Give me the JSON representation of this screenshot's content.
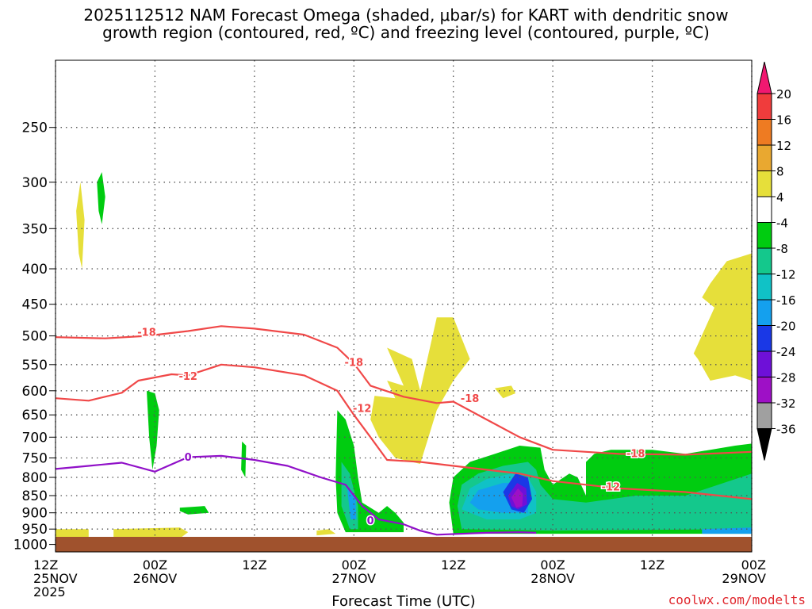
{
  "title": {
    "line1": "2025112512 NAM Forecast Omega (shaded, μbar/s) for KART with dendritic snow",
    "line2": "growth region (contoured, red, ºC) and freezing level (contoured, purple, ºC)"
  },
  "credit": "coolwx.com/modelts",
  "chart_data": {
    "type": "heatmap",
    "xlabel": "Forecast Time (UTC)",
    "ylabel": "",
    "x_ticks": [
      {
        "hour": 0,
        "lines": [
          "12Z",
          "25NOV",
          "2025"
        ]
      },
      {
        "hour": 12,
        "lines": [
          "00Z",
          "26NOV"
        ]
      },
      {
        "hour": 24,
        "lines": [
          "12Z"
        ]
      },
      {
        "hour": 36,
        "lines": [
          "00Z",
          "27NOV"
        ]
      },
      {
        "hour": 48,
        "lines": [
          "12Z"
        ]
      },
      {
        "hour": 60,
        "lines": [
          "00Z",
          "28NOV"
        ]
      },
      {
        "hour": 72,
        "lines": [
          "12Z"
        ]
      },
      {
        "hour": 84,
        "lines": [
          "00Z",
          "29NOV"
        ]
      }
    ],
    "y_ticks": [
      250,
      300,
      350,
      400,
      450,
      500,
      550,
      600,
      650,
      700,
      750,
      800,
      850,
      900,
      950,
      1000
    ],
    "ylim": [
      1025,
      200
    ],
    "xlim": [
      0,
      84
    ],
    "y_scale": "log",
    "grid": true,
    "colorbar": {
      "labels": [
        "20",
        "16",
        "12",
        "8",
        "4",
        "-4",
        "-8",
        "-12",
        "-16",
        "-20",
        "-24",
        "-28",
        "-32",
        "-36"
      ],
      "colors": [
        "#f01870",
        "#f03c3c",
        "#ee7b22",
        "#e9a830",
        "#e6df3a",
        "#ffffff",
        "#00cc10",
        "#14c88c",
        "#10c2c6",
        "#14a0ee",
        "#1a38e6",
        "#6e10d8",
        "#9e10c6",
        "#a0a0a0",
        "#000000"
      ]
    },
    "contours": [
      {
        "label": "-18",
        "color": "#f04848",
        "points": [
          [
            0,
            502
          ],
          [
            6,
            504
          ],
          [
            11,
            500
          ],
          [
            16,
            492
          ],
          [
            20,
            484
          ],
          [
            24,
            488
          ],
          [
            30,
            498
          ],
          [
            34,
            520
          ],
          [
            36,
            548
          ],
          [
            38,
            590
          ],
          [
            42,
            612
          ],
          [
            46,
            625
          ],
          [
            48,
            622
          ],
          [
            52,
            660
          ],
          [
            56,
            700
          ],
          [
            60,
            730
          ],
          [
            68,
            740
          ],
          [
            76,
            742
          ],
          [
            84,
            735
          ]
        ]
      },
      {
        "label": "-12",
        "color": "#f04848",
        "points": [
          [
            0,
            615
          ],
          [
            4,
            620
          ],
          [
            8,
            604
          ],
          [
            10,
            580
          ],
          [
            14,
            568
          ],
          [
            16,
            570
          ],
          [
            20,
            550
          ],
          [
            24,
            555
          ],
          [
            30,
            570
          ],
          [
            34,
            600
          ],
          [
            36,
            650
          ],
          [
            38,
            700
          ],
          [
            40,
            755
          ],
          [
            44,
            760
          ],
          [
            48,
            770
          ],
          [
            52,
            780
          ],
          [
            56,
            790
          ],
          [
            60,
            810
          ],
          [
            68,
            830
          ],
          [
            76,
            840
          ],
          [
            84,
            860
          ]
        ]
      },
      {
        "label": "0",
        "color": "#9010c8",
        "points": [
          [
            0,
            778
          ],
          [
            4,
            770
          ],
          [
            8,
            762
          ],
          [
            12,
            785
          ],
          [
            16,
            748
          ],
          [
            20,
            745
          ],
          [
            24,
            755
          ],
          [
            28,
            770
          ],
          [
            32,
            800
          ],
          [
            35,
            820
          ],
          [
            37,
            880
          ],
          [
            39,
            920
          ],
          [
            42,
            935
          ],
          [
            44,
            955
          ],
          [
            46,
            968
          ],
          [
            52,
            962
          ],
          [
            56,
            960
          ],
          [
            58,
            962
          ]
        ]
      }
    ],
    "contour_labels": [
      {
        "text": "-18",
        "x": 11,
        "p": 493
      },
      {
        "text": "-18",
        "x": 36,
        "p": 545
      },
      {
        "text": "-18",
        "x": 50,
        "p": 615
      },
      {
        "text": "-18",
        "x": 70,
        "p": 738
      },
      {
        "text": "-12",
        "x": 16,
        "p": 571
      },
      {
        "text": "-12",
        "x": 37,
        "p": 635
      },
      {
        "text": "-12",
        "x": 67,
        "p": 825
      },
      {
        "text": "0",
        "x": 16,
        "p": 747
      },
      {
        "text": "0",
        "x": 38,
        "p": 923
      }
    ],
    "omega_regions": [
      {
        "value": 4,
        "points": [
          [
            2.5,
            330
          ],
          [
            3,
            300
          ],
          [
            3.5,
            340
          ],
          [
            3.2,
            400
          ],
          [
            2.8,
            380
          ]
        ]
      },
      {
        "value": -4,
        "points": [
          [
            5,
            300
          ],
          [
            5.6,
            290
          ],
          [
            6,
            315
          ],
          [
            5.6,
            345
          ],
          [
            5.2,
            330
          ]
        ]
      },
      {
        "value": -4,
        "points": [
          [
            11,
            600
          ],
          [
            12,
            605
          ],
          [
            12.5,
            640
          ],
          [
            12.2,
            720
          ],
          [
            11.7,
            780
          ],
          [
            11.3,
            700
          ]
        ]
      },
      {
        "value": -4,
        "points": [
          [
            22.5,
            710
          ],
          [
            23,
            720
          ],
          [
            22.9,
            800
          ],
          [
            22.4,
            780
          ]
        ]
      },
      {
        "value": -4,
        "points": [
          [
            15,
            885
          ],
          [
            18,
            880
          ],
          [
            18.5,
            900
          ],
          [
            16,
            905
          ],
          [
            15,
            895
          ]
        ]
      },
      {
        "value": 4,
        "points": [
          [
            0,
            950
          ],
          [
            4,
            950
          ],
          [
            4,
            975
          ],
          [
            0,
            975
          ]
        ]
      },
      {
        "value": 4,
        "points": [
          [
            7,
            950
          ],
          [
            15,
            945
          ],
          [
            16,
            960
          ],
          [
            15,
            980
          ],
          [
            7,
            980
          ]
        ]
      },
      {
        "value": 4,
        "points": [
          [
            31.5,
            955
          ],
          [
            33,
            950
          ],
          [
            33.8,
            965
          ],
          [
            31.5,
            970
          ]
        ]
      },
      {
        "value": 4,
        "points": [
          [
            38.5,
            610
          ],
          [
            41,
            615
          ],
          [
            40,
            580
          ],
          [
            42,
            590
          ],
          [
            40,
            520
          ],
          [
            43,
            540
          ],
          [
            44,
            600
          ],
          [
            46,
            470
          ],
          [
            48,
            470
          ],
          [
            50,
            540
          ],
          [
            48,
            580
          ],
          [
            46,
            640
          ],
          [
            45,
            700
          ],
          [
            44,
            765
          ],
          [
            41,
            750
          ],
          [
            39,
            700
          ],
          [
            38,
            660
          ]
        ]
      },
      {
        "value": 4,
        "points": [
          [
            53,
            595
          ],
          [
            55,
            590
          ],
          [
            55.5,
            605
          ],
          [
            54,
            615
          ]
        ]
      },
      {
        "value": 4,
        "points": [
          [
            77,
            530
          ],
          [
            79.5,
            455
          ],
          [
            78,
            440
          ],
          [
            79,
            420
          ],
          [
            81,
            390
          ],
          [
            84,
            380
          ],
          [
            84,
            580
          ],
          [
            82,
            570
          ],
          [
            79,
            580
          ],
          [
            77.5,
            540
          ]
        ]
      },
      {
        "value": -4,
        "points": [
          [
            34,
            640
          ],
          [
            35,
            660
          ],
          [
            36,
            720
          ],
          [
            36.5,
            800
          ],
          [
            37,
            870
          ],
          [
            39,
            900
          ],
          [
            40,
            880
          ],
          [
            41,
            900
          ],
          [
            42,
            930
          ],
          [
            42,
            960
          ],
          [
            37,
            960
          ],
          [
            35,
            960
          ],
          [
            34,
            900
          ],
          [
            33.8,
            800
          ]
        ]
      },
      {
        "value": -8,
        "points": [
          [
            34.5,
            760
          ],
          [
            35.5,
            790
          ],
          [
            36.5,
            880
          ],
          [
            36.5,
            950
          ],
          [
            35.5,
            950
          ],
          [
            34.5,
            880
          ]
        ]
      },
      {
        "value": -16,
        "points": [
          [
            35.2,
            830
          ],
          [
            36.2,
            860
          ],
          [
            36.3,
            920
          ],
          [
            35.6,
            920
          ]
        ]
      },
      {
        "value": -4,
        "points": [
          [
            47.5,
            870
          ],
          [
            48,
            800
          ],
          [
            50,
            760
          ],
          [
            53,
            740
          ],
          [
            56,
            720
          ],
          [
            58.5,
            725
          ],
          [
            59,
            780
          ],
          [
            60,
            820
          ],
          [
            62,
            790
          ],
          [
            63,
            800
          ],
          [
            64,
            850
          ],
          [
            64,
            760
          ],
          [
            65,
            740
          ],
          [
            67,
            730
          ],
          [
            72,
            730
          ],
          [
            76,
            740
          ],
          [
            82,
            720
          ],
          [
            84,
            715
          ],
          [
            84,
            965
          ],
          [
            60,
            965
          ],
          [
            48,
            965
          ]
        ]
      },
      {
        "value": -8,
        "points": [
          [
            48.5,
            880
          ],
          [
            49,
            820
          ],
          [
            51,
            790
          ],
          [
            54,
            770
          ],
          [
            57,
            760
          ],
          [
            58,
            780
          ],
          [
            58.5,
            820
          ],
          [
            60,
            860
          ],
          [
            64,
            870
          ],
          [
            70,
            850
          ],
          [
            76,
            850
          ],
          [
            84,
            790
          ],
          [
            84,
            950
          ],
          [
            60,
            955
          ],
          [
            49,
            950
          ]
        ]
      },
      {
        "value": -12,
        "points": [
          [
            49,
            890
          ],
          [
            50,
            830
          ],
          [
            52,
            805
          ],
          [
            55,
            790
          ],
          [
            57,
            800
          ],
          [
            58,
            840
          ],
          [
            58,
            900
          ],
          [
            56,
            920
          ],
          [
            52,
            920
          ]
        ]
      },
      {
        "value": -16,
        "points": [
          [
            50,
            870
          ],
          [
            51,
            835
          ],
          [
            54,
            815
          ],
          [
            56,
            815
          ],
          [
            57,
            850
          ],
          [
            57,
            900
          ],
          [
            54,
            900
          ],
          [
            51,
            890
          ]
        ]
      },
      {
        "value": -20,
        "points": [
          [
            54,
            840
          ],
          [
            55.5,
            790
          ],
          [
            57,
            800
          ],
          [
            57.5,
            860
          ],
          [
            56.5,
            900
          ],
          [
            55,
            890
          ]
        ]
      },
      {
        "value": -24,
        "points": [
          [
            54.6,
            850
          ],
          [
            55.7,
            815
          ],
          [
            56.8,
            830
          ],
          [
            56.9,
            875
          ],
          [
            55.8,
            890
          ],
          [
            55,
            880
          ]
        ]
      },
      {
        "value": -28,
        "points": [
          [
            55,
            855
          ],
          [
            55.8,
            830
          ],
          [
            56.4,
            845
          ],
          [
            56.3,
            880
          ],
          [
            55.6,
            885
          ]
        ]
      },
      {
        "value": -16,
        "points": [
          [
            78,
            950
          ],
          [
            84,
            945
          ],
          [
            84,
            965
          ],
          [
            78,
            965
          ]
        ]
      }
    ],
    "surface": {
      "color": "#a0522d",
      "pressure": 975
    }
  }
}
